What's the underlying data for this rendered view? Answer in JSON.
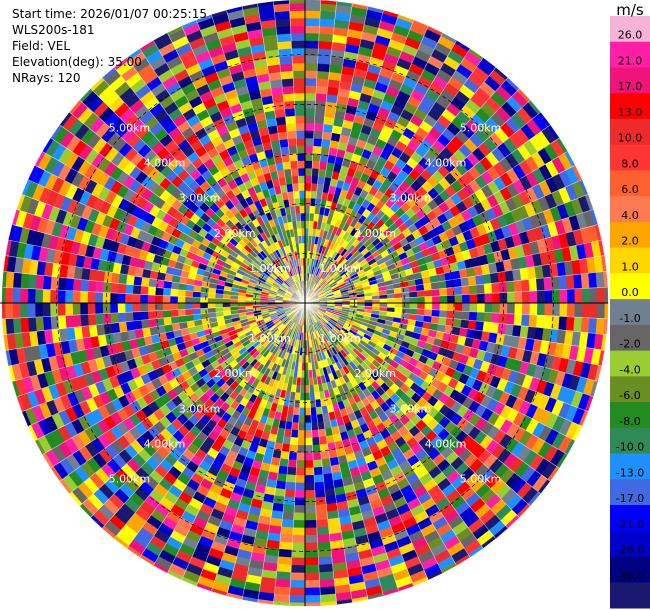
{
  "info": {
    "start_time": "Start time: 2026/01/07 00:25:15",
    "site": "WLS200s-181",
    "field": "Field: VEL",
    "elevation": "Elevation(deg): 35.00",
    "nrays": "NRays: 120"
  },
  "chart_data": {
    "type": "heatmap",
    "projection": "polar-ppi",
    "field": "VEL",
    "units": "m/s",
    "nrays": 120,
    "range_rings": [
      "1.00km",
      "2.00km",
      "3.00km",
      "4.00km",
      "5.00km"
    ],
    "range_rings_km": [
      1,
      2,
      3,
      4,
      5
    ],
    "max_range_km": 6.1,
    "colorbar": {
      "label": "m/s",
      "ticks": [
        "26.0",
        "21.0",
        "17.0",
        "13.0",
        "10.0",
        "8.0",
        "6.0",
        "4.0",
        "2.0",
        "1.0",
        "0.0",
        "-1.0",
        "-2.0",
        "-4.0",
        "-6.0",
        "-8.0",
        "-10.0",
        "-13.0",
        "-17.0",
        "-21.0",
        "-26.0",
        "-30.0"
      ],
      "colors": [
        "#f5b3d8",
        "#ff1fa7",
        "#f0147a",
        "#ff0000",
        "#ee2b2b",
        "#ff3535",
        "#ff6030",
        "#ff7a50",
        "#ffa500",
        "#ffd700",
        "#ffff00",
        "#708090",
        "#666666",
        "#9acd32",
        "#6b8e23",
        "#228b22",
        "#2e8b57",
        "#1e90ff",
        "#4169e1",
        "#0000ff",
        "#0000cd",
        "#000080",
        "#191970"
      ]
    }
  }
}
